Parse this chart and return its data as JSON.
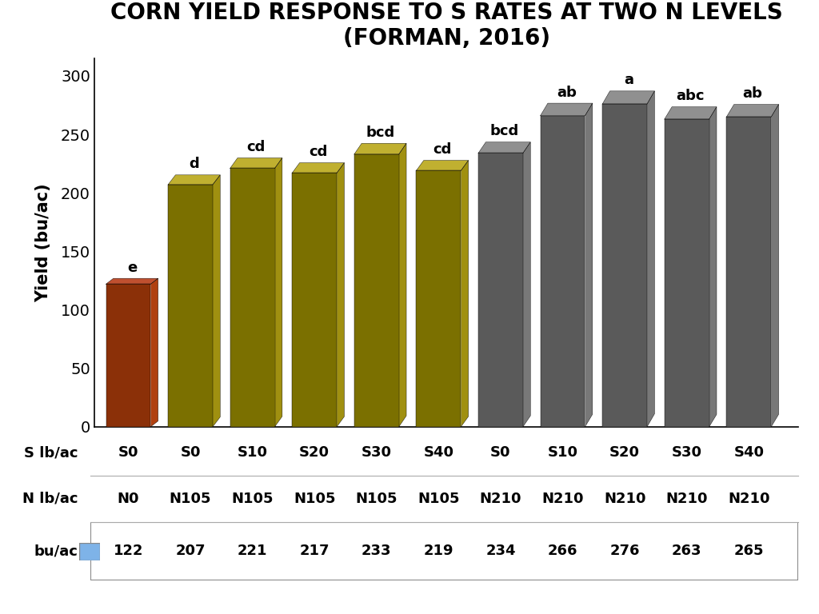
{
  "title": "CORN YIELD RESPONSE TO S RATES AT TWO N LEVELS\n(FORMAN, 2016)",
  "ylabel": "Yield (bu/ac)",
  "values": [
    122,
    207,
    221,
    217,
    233,
    219,
    234,
    266,
    276,
    263,
    265
  ],
  "s_labels": [
    "S0",
    "S0",
    "S10",
    "S20",
    "S30",
    "S40",
    "S0",
    "S10",
    "S20",
    "S30",
    "S40"
  ],
  "n_labels": [
    "N0",
    "N105",
    "N105",
    "N105",
    "N105",
    "N105",
    "N210",
    "N210",
    "N210",
    "N210",
    "N210"
  ],
  "bu_labels": [
    "122",
    "207",
    "221",
    "217",
    "233",
    "219",
    "234",
    "266",
    "276",
    "263",
    "265"
  ],
  "sig_labels": [
    "e",
    "d",
    "cd",
    "cd",
    "bcd",
    "cd",
    "bcd",
    "ab",
    "a",
    "abc",
    "ab"
  ],
  "bar_colors_main": [
    "#8B3008",
    "#7B7000",
    "#7B7000",
    "#7B7000",
    "#7B7000",
    "#7B7000",
    "#5A5A5A",
    "#5A5A5A",
    "#5A5A5A",
    "#5A5A5A",
    "#5A5A5A"
  ],
  "bar_colors_side": [
    "#B04010",
    "#A09010",
    "#A09010",
    "#A09010",
    "#A09010",
    "#A09010",
    "#787878",
    "#787878",
    "#787878",
    "#787878",
    "#787878"
  ],
  "bar_colors_top": [
    "#C05030",
    "#C0B030",
    "#C0B030",
    "#C0B030",
    "#C0B030",
    "#C0B030",
    "#909090",
    "#909090",
    "#909090",
    "#909090",
    "#909090"
  ],
  "ylim": [
    0,
    315
  ],
  "yticks": [
    0,
    50,
    100,
    150,
    200,
    250,
    300
  ],
  "legend_color": "#7EB3E8",
  "table_row_labels": [
    "S lb/ac",
    "N lb/ac",
    "bu/ac"
  ],
  "background_color": "#ffffff",
  "title_fontsize": 20,
  "axis_label_fontsize": 15,
  "tick_fontsize": 14,
  "sig_fontsize": 13,
  "table_fontsize": 13,
  "depth": 8
}
